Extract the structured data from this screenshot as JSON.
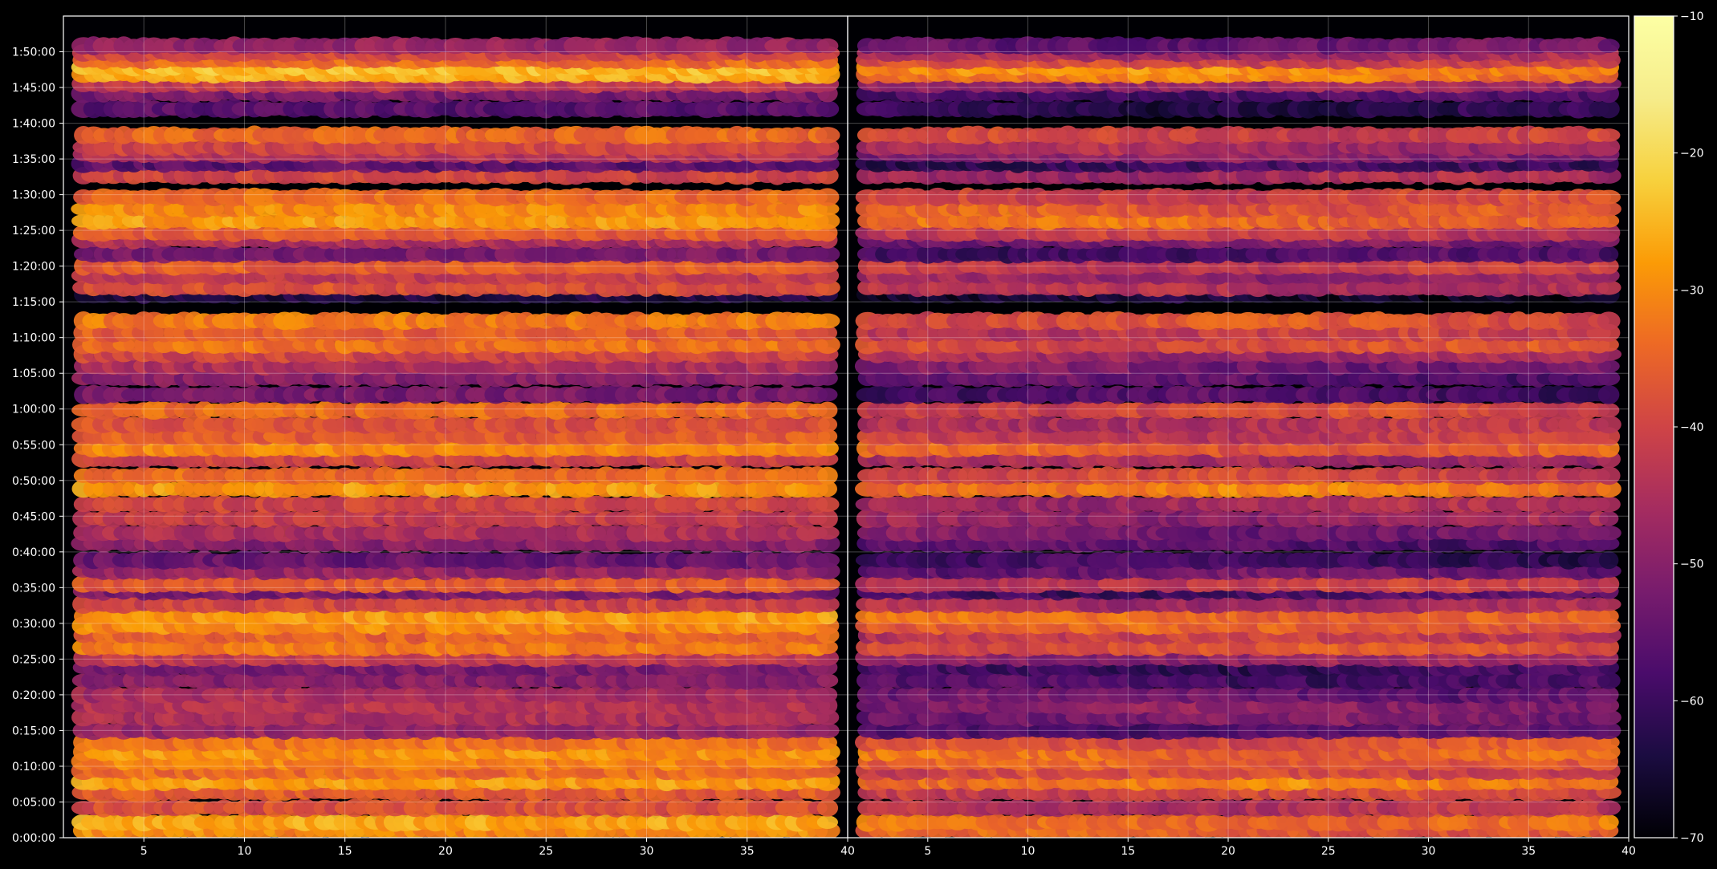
{
  "chart_data": {
    "type": "heatmap",
    "title": "",
    "xlabel": "",
    "ylabel": "",
    "grid": true,
    "colormap": "inferno",
    "background": "#000000",
    "y_ticks": [
      "0:00:00",
      "0:05:00",
      "0:10:00",
      "0:15:00",
      "0:20:00",
      "0:25:00",
      "0:30:00",
      "0:35:00",
      "0:40:00",
      "0:45:00",
      "0:50:00",
      "0:55:00",
      "1:00:00",
      "1:05:00",
      "1:10:00",
      "1:15:00",
      "1:20:00",
      "1:25:00",
      "1:30:00",
      "1:35:00",
      "1:40:00",
      "1:45:00",
      "1:50:00"
    ],
    "ylim_seconds": [
      0,
      6900
    ],
    "panels": [
      {
        "x_ticks": [
          "5",
          "10",
          "15",
          "20",
          "25",
          "30",
          "35",
          "40"
        ],
        "xlim": [
          1,
          40
        ],
        "x_range_data": [
          2,
          39
        ],
        "row_levels": [
          {
            "t": 60,
            "v": -30
          },
          {
            "t": 130,
            "v": -27
          },
          {
            "t": 250,
            "v": -38
          },
          {
            "t": 380,
            "v": -36
          },
          {
            "t": 470,
            "v": -28
          },
          {
            "t": 560,
            "v": -34
          },
          {
            "t": 640,
            "v": -31
          },
          {
            "t": 720,
            "v": -29
          },
          {
            "t": 800,
            "v": -33
          },
          {
            "t": 900,
            "v": -48
          },
          {
            "t": 1010,
            "v": -45
          },
          {
            "t": 1110,
            "v": -44
          },
          {
            "t": 1200,
            "v": -46
          },
          {
            "t": 1320,
            "v": -50
          },
          {
            "t": 1430,
            "v": -52
          },
          {
            "t": 1510,
            "v": -42
          },
          {
            "t": 1600,
            "v": -32
          },
          {
            "t": 1700,
            "v": -35
          },
          {
            "t": 1780,
            "v": -30
          },
          {
            "t": 1860,
            "v": -28
          },
          {
            "t": 1960,
            "v": -40
          },
          {
            "t": 2070,
            "v": -52
          },
          {
            "t": 2130,
            "v": -36
          },
          {
            "t": 2240,
            "v": -48
          },
          {
            "t": 2330,
            "v": -54
          },
          {
            "t": 2470,
            "v": -50
          },
          {
            "t": 2560,
            "v": -45
          },
          {
            "t": 2680,
            "v": -42
          },
          {
            "t": 2800,
            "v": -40
          },
          {
            "t": 2930,
            "v": -28
          },
          {
            "t": 3040,
            "v": -34
          },
          {
            "t": 3180,
            "v": -40
          },
          {
            "t": 3270,
            "v": -30
          },
          {
            "t": 3370,
            "v": -36
          },
          {
            "t": 3470,
            "v": -38
          },
          {
            "t": 3590,
            "v": -34
          },
          {
            "t": 3720,
            "v": -52
          },
          {
            "t": 3860,
            "v": -50
          },
          {
            "t": 3960,
            "v": -45
          },
          {
            "t": 4060,
            "v": -40
          },
          {
            "t": 4140,
            "v": -33
          },
          {
            "t": 4240,
            "v": -36
          },
          {
            "t": 4340,
            "v": -32
          },
          {
            "t": 4560,
            "v": -64
          },
          {
            "t": 4620,
            "v": -38
          },
          {
            "t": 4720,
            "v": -42
          },
          {
            "t": 4800,
            "v": -36
          },
          {
            "t": 4900,
            "v": -52
          },
          {
            "t": 5020,
            "v": -45
          },
          {
            "t": 5080,
            "v": -36
          },
          {
            "t": 5180,
            "v": -28
          },
          {
            "t": 5280,
            "v": -30
          },
          {
            "t": 5380,
            "v": -34
          },
          {
            "t": 5560,
            "v": -40
          },
          {
            "t": 5660,
            "v": -56
          },
          {
            "t": 5740,
            "v": -44
          },
          {
            "t": 5800,
            "v": -40
          },
          {
            "t": 5900,
            "v": -34
          },
          {
            "t": 6120,
            "v": -56
          },
          {
            "t": 6250,
            "v": -52
          },
          {
            "t": 6330,
            "v": -42
          },
          {
            "t": 6410,
            "v": -26
          },
          {
            "t": 6470,
            "v": -24
          },
          {
            "t": 6530,
            "v": -34
          },
          {
            "t": 6590,
            "v": -40
          },
          {
            "t": 6650,
            "v": -48
          }
        ]
      },
      {
        "x_ticks": [
          "5",
          "10",
          "15",
          "20",
          "25",
          "30",
          "35",
          "40"
        ],
        "xlim": [
          1,
          40
        ],
        "x_range_data": [
          2,
          39
        ],
        "row_levels": [
          {
            "t": 60,
            "v": -36
          },
          {
            "t": 130,
            "v": -34
          },
          {
            "t": 250,
            "v": -44
          },
          {
            "t": 380,
            "v": -40
          },
          {
            "t": 470,
            "v": -32
          },
          {
            "t": 560,
            "v": -40
          },
          {
            "t": 640,
            "v": -36
          },
          {
            "t": 720,
            "v": -34
          },
          {
            "t": 800,
            "v": -38
          },
          {
            "t": 900,
            "v": -56
          },
          {
            "t": 1010,
            "v": -52
          },
          {
            "t": 1110,
            "v": -50
          },
          {
            "t": 1200,
            "v": -54
          },
          {
            "t": 1320,
            "v": -58
          },
          {
            "t": 1430,
            "v": -60
          },
          {
            "t": 1510,
            "v": -48
          },
          {
            "t": 1600,
            "v": -38
          },
          {
            "t": 1700,
            "v": -42
          },
          {
            "t": 1780,
            "v": -36
          },
          {
            "t": 1860,
            "v": -34
          },
          {
            "t": 1960,
            "v": -46
          },
          {
            "t": 2070,
            "v": -58
          },
          {
            "t": 2130,
            "v": -42
          },
          {
            "t": 2240,
            "v": -54
          },
          {
            "t": 2330,
            "v": -60
          },
          {
            "t": 2470,
            "v": -56
          },
          {
            "t": 2560,
            "v": -52
          },
          {
            "t": 2680,
            "v": -48
          },
          {
            "t": 2800,
            "v": -46
          },
          {
            "t": 2930,
            "v": -32
          },
          {
            "t": 3040,
            "v": -40
          },
          {
            "t": 3180,
            "v": -46
          },
          {
            "t": 3270,
            "v": -36
          },
          {
            "t": 3370,
            "v": -42
          },
          {
            "t": 3470,
            "v": -44
          },
          {
            "t": 3590,
            "v": -40
          },
          {
            "t": 3720,
            "v": -58
          },
          {
            "t": 3860,
            "v": -56
          },
          {
            "t": 3960,
            "v": -52
          },
          {
            "t": 4060,
            "v": -46
          },
          {
            "t": 4140,
            "v": -38
          },
          {
            "t": 4240,
            "v": -42
          },
          {
            "t": 4340,
            "v": -38
          },
          {
            "t": 4560,
            "v": -66
          },
          {
            "t": 4620,
            "v": -44
          },
          {
            "t": 4720,
            "v": -48
          },
          {
            "t": 4800,
            "v": -42
          },
          {
            "t": 4900,
            "v": -58
          },
          {
            "t": 5020,
            "v": -52
          },
          {
            "t": 5080,
            "v": -42
          },
          {
            "t": 5180,
            "v": -34
          },
          {
            "t": 5280,
            "v": -36
          },
          {
            "t": 5380,
            "v": -40
          },
          {
            "t": 5560,
            "v": -46
          },
          {
            "t": 5660,
            "v": -60
          },
          {
            "t": 5740,
            "v": -50
          },
          {
            "t": 5800,
            "v": -46
          },
          {
            "t": 5900,
            "v": -40
          },
          {
            "t": 6120,
            "v": -62
          },
          {
            "t": 6250,
            "v": -58
          },
          {
            "t": 6330,
            "v": -48
          },
          {
            "t": 6410,
            "v": -32
          },
          {
            "t": 6470,
            "v": -30
          },
          {
            "t": 6530,
            "v": -40
          },
          {
            "t": 6590,
            "v": -46
          },
          {
            "t": 6650,
            "v": -54
          }
        ]
      }
    ],
    "colorbar": {
      "ticks": [
        "−10",
        "−20",
        "−30",
        "−40",
        "−50",
        "−60",
        "−70"
      ],
      "range": [
        -70,
        -10
      ]
    }
  }
}
